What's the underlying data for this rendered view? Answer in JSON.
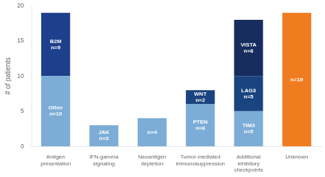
{
  "chart_data": {
    "type": "bar",
    "stacked": true,
    "grid": false,
    "data_labels": true,
    "categories": [
      "Antigen\npresentation",
      "IFN-gamma\nsignaling",
      "Neoantigen\ndepletion",
      "Tumor-mediated\nimmunosuppression",
      "Additional\ninhibitory\ncheckpoints",
      "Unknown"
    ],
    "ylabel": "# of patients",
    "ylim": [
      0,
      20
    ],
    "yticks": [
      0,
      5,
      10,
      15,
      20
    ],
    "series": [
      {
        "values": [
          10,
          3,
          4,
          6,
          5,
          19
        ],
        "colors": [
          "#7badd6",
          "#7badd6",
          "#7badd6",
          "#7badd6",
          "#7badd6",
          "#f07c20"
        ],
        "value_labels": [
          "Other\nn=10",
          "JAK\nn=3",
          "n=4",
          "PTEN\nn=6",
          "TIM3\nn=5",
          "n=19"
        ]
      },
      {
        "values": [
          9,
          null,
          null,
          2,
          5,
          null
        ],
        "colors": [
          "#1e3f8c",
          null,
          null,
          "#1a4480",
          "#1a4480",
          null
        ],
        "value_labels": [
          "B2M\nn=9",
          null,
          null,
          "WNT\nn=2",
          "LAG3\nn=5",
          null
        ]
      },
      {
        "values": [
          null,
          null,
          null,
          null,
          8,
          null
        ],
        "colors": [
          null,
          null,
          null,
          null,
          "#162d5e",
          null
        ],
        "value_labels": [
          null,
          null,
          null,
          null,
          "VISTA\nn=8",
          null
        ]
      }
    ]
  }
}
